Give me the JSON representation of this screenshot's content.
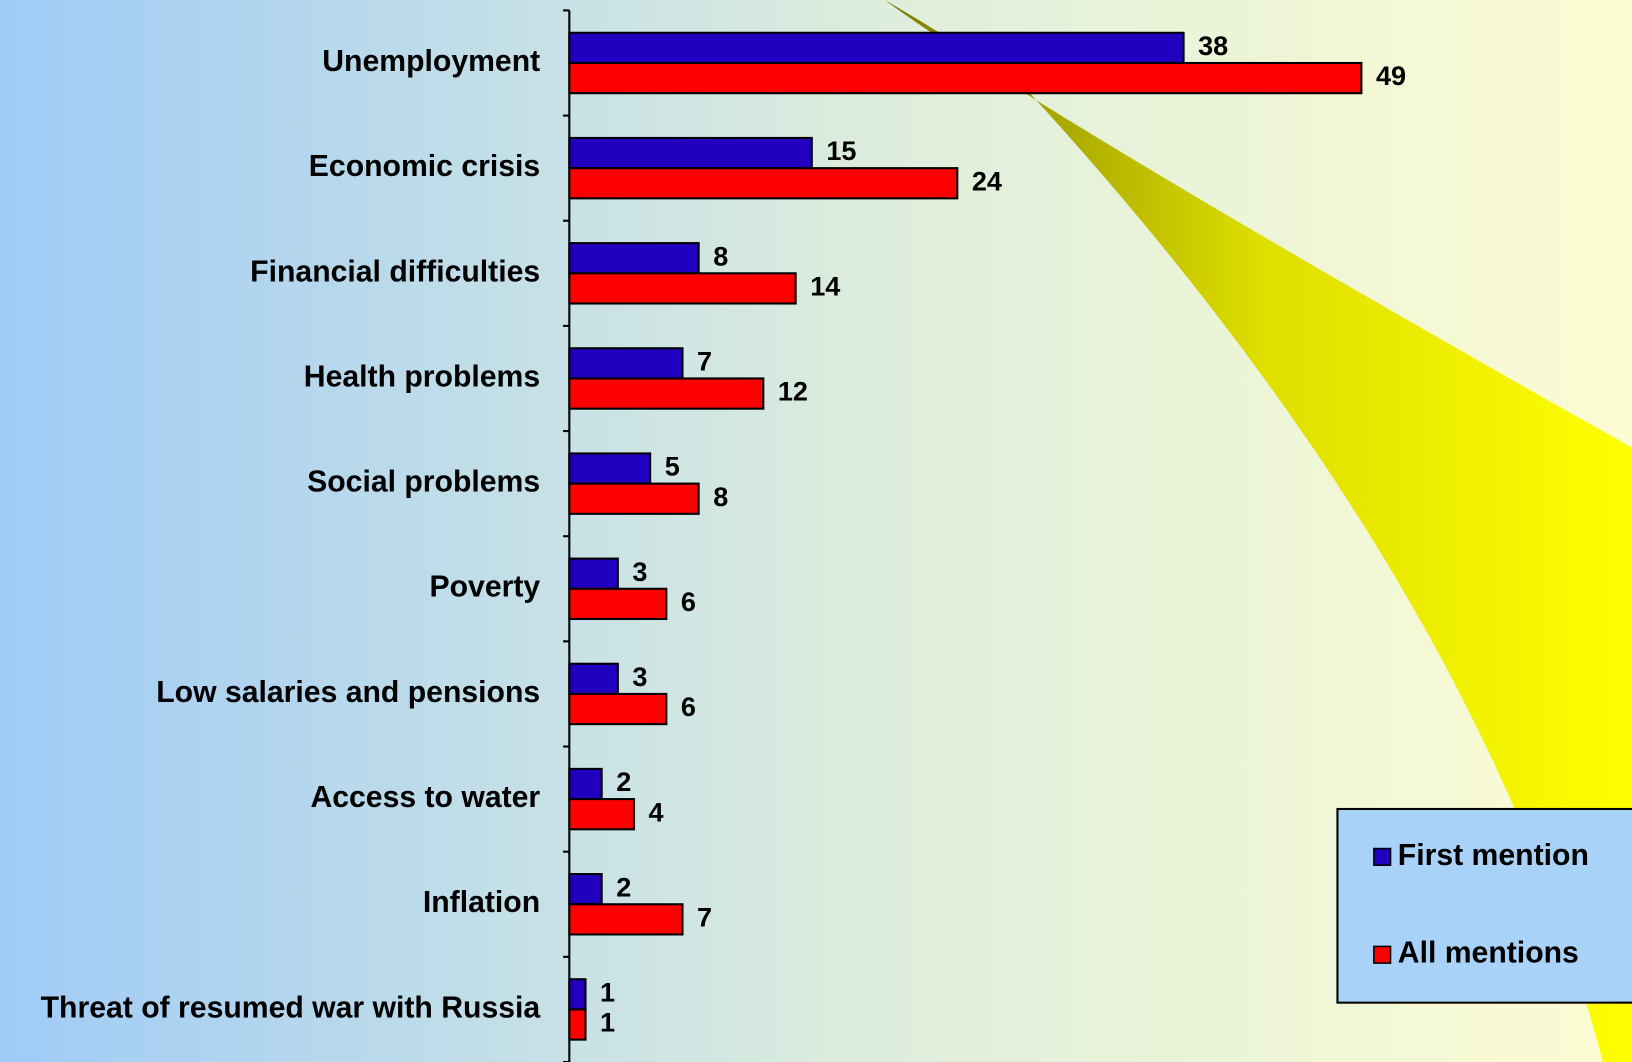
{
  "chart_data": {
    "type": "bar",
    "orientation": "horizontal",
    "categories": [
      "Unemployment",
      "Economic crisis",
      "Financial difficulties",
      "Health problems",
      "Social problems",
      "Poverty",
      "Low salaries and pensions",
      "Access to water",
      "Inflation",
      "Threat of resumed war with Russia"
    ],
    "series": [
      {
        "name": "First mention",
        "color": "#2200c0",
        "values": [
          38,
          15,
          8,
          7,
          5,
          3,
          3,
          2,
          2,
          1
        ]
      },
      {
        "name": "All mentions",
        "color": "#ff0000",
        "values": [
          49,
          24,
          14,
          12,
          8,
          6,
          6,
          4,
          7,
          1
        ]
      }
    ],
    "legend": "right"
  }
}
